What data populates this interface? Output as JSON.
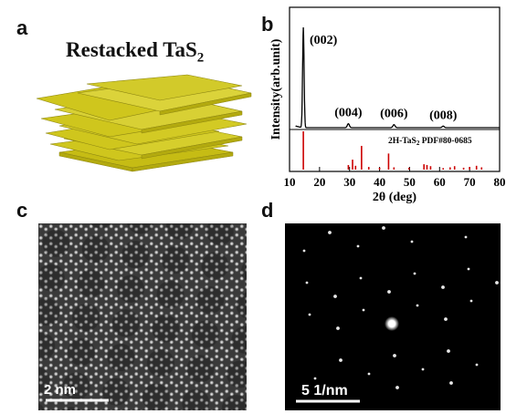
{
  "panels": {
    "a": {
      "letter": "a",
      "title": "Restacked TaS",
      "title_sub": "2"
    },
    "b": {
      "letter": "b"
    },
    "c": {
      "letter": "c",
      "scale_label": "2 nm"
    },
    "d": {
      "letter": "d",
      "scale_label": "5 1/nm"
    }
  },
  "chart_data": {
    "type": "line",
    "xlabel": "2θ (deg)",
    "ylabel": "Intensity(arb.unit)",
    "xlim": [
      10,
      80
    ],
    "xticks": [
      10,
      20,
      30,
      40,
      50,
      60,
      70,
      80
    ],
    "peaks": [
      {
        "x": 14.6,
        "label": "(002)",
        "height": 1.0
      },
      {
        "x": 29.6,
        "label": "(004)",
        "height": 0.04
      },
      {
        "x": 44.8,
        "label": "(006)",
        "height": 0.03
      },
      {
        "x": 61.2,
        "label": "(008)",
        "height": 0.015
      }
    ],
    "reference": {
      "label": "2H-TaS",
      "label_sub": "2",
      "label_suffix": " PDF#80-0685",
      "color": "#cc0000",
      "lines": [
        {
          "x": 14.6,
          "h": 1.0
        },
        {
          "x": 29.6,
          "h": 0.12
        },
        {
          "x": 31.0,
          "h": 0.26
        },
        {
          "x": 32.0,
          "h": 0.1
        },
        {
          "x": 34.0,
          "h": 0.62
        },
        {
          "x": 36.4,
          "h": 0.07
        },
        {
          "x": 40.0,
          "h": 0.05
        },
        {
          "x": 43.0,
          "h": 0.42
        },
        {
          "x": 44.8,
          "h": 0.06
        },
        {
          "x": 49.8,
          "h": 0.05
        },
        {
          "x": 54.8,
          "h": 0.14
        },
        {
          "x": 55.8,
          "h": 0.12
        },
        {
          "x": 57.0,
          "h": 0.09
        },
        {
          "x": 61.2,
          "h": 0.04
        },
        {
          "x": 63.5,
          "h": 0.06
        },
        {
          "x": 65.0,
          "h": 0.09
        },
        {
          "x": 68.0,
          "h": 0.05
        },
        {
          "x": 70.0,
          "h": 0.07
        },
        {
          "x": 72.3,
          "h": 0.1
        },
        {
          "x": 74.0,
          "h": 0.06
        }
      ]
    }
  },
  "colors": {
    "sheet_fill": "#cfc61d",
    "sheet_edge": "#8c8512",
    "xrd_line": "#000000",
    "reference": "#cc0000"
  }
}
